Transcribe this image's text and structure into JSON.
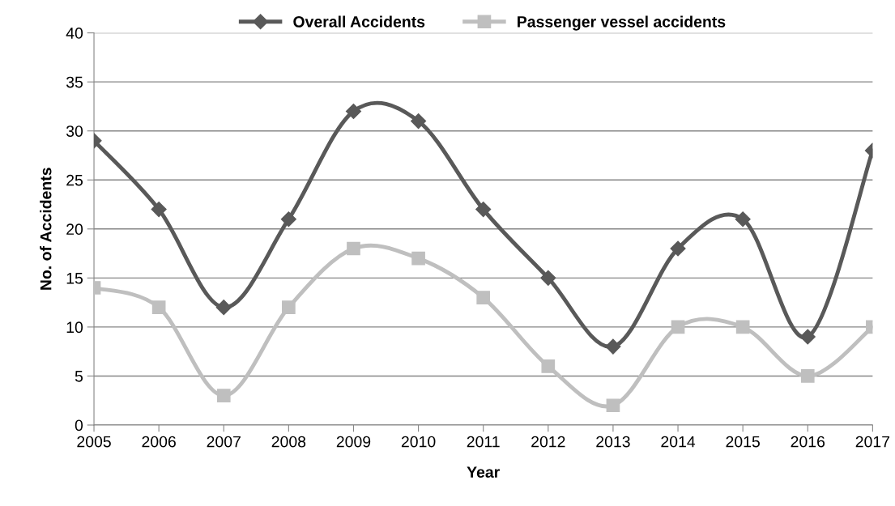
{
  "chart_data": {
    "type": "line",
    "xlabel": "Year",
    "ylabel": "No. of Accidents",
    "categories": [
      "2005",
      "2006",
      "2007",
      "2008",
      "2009",
      "2010",
      "2011",
      "2012",
      "2013",
      "2014",
      "2015",
      "2016",
      "2017"
    ],
    "series": [
      {
        "name": "Overall Accidents",
        "color": "#595959",
        "marker": "diamond",
        "values": [
          29,
          22,
          12,
          21,
          32,
          31,
          22,
          15,
          8,
          18,
          21,
          9,
          28
        ]
      },
      {
        "name": "Passenger vessel accidents",
        "color": "#bfbfbf",
        "marker": "square",
        "values": [
          14,
          12,
          3,
          12,
          18,
          17,
          13,
          6,
          2,
          10,
          10,
          5,
          10
        ]
      }
    ],
    "ylim": [
      0,
      40
    ],
    "yticks": [
      0,
      5,
      10,
      15,
      20,
      25,
      30,
      35,
      40
    ],
    "grid": "y",
    "legend": "top",
    "line_style": "solid"
  }
}
